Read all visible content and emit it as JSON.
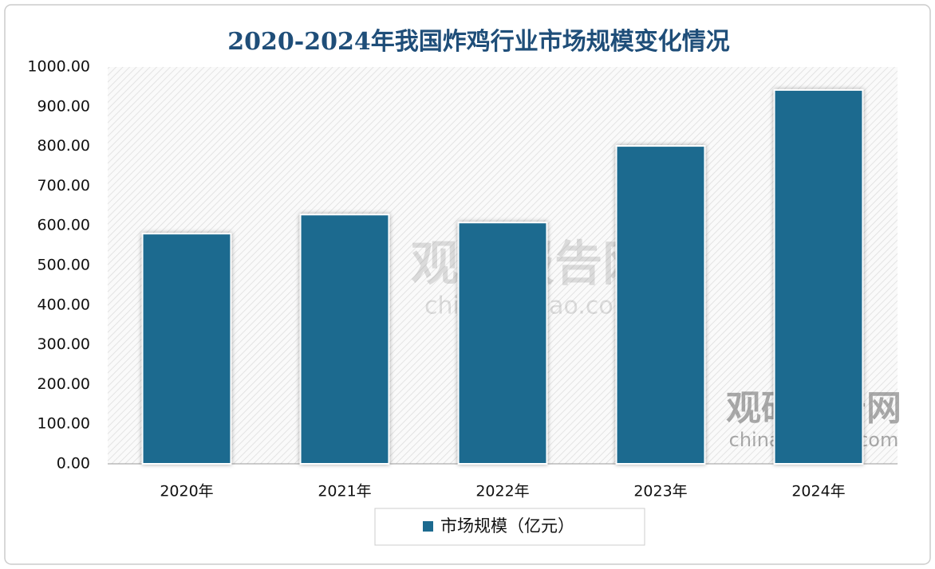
{
  "chart_data": {
    "type": "bar",
    "title": "2020-2024年我国炸鸡行业市场规模变化情况",
    "categories": [
      "2020年",
      "2021年",
      "2022年",
      "2023年",
      "2024年"
    ],
    "series": [
      {
        "name": "市场规模（亿元）",
        "color": "#1c6a8f",
        "values": [
          580,
          628,
          608,
          801,
          942
        ]
      }
    ],
    "ylim": [
      0,
      1000
    ],
    "yticks": [
      {
        "value": 0,
        "label": "0.00"
      },
      {
        "value": 100,
        "label": "100.00"
      },
      {
        "value": 200,
        "label": "200.00"
      },
      {
        "value": 300,
        "label": "300.00"
      },
      {
        "value": 400,
        "label": "400.00"
      },
      {
        "value": 500,
        "label": "500.00"
      },
      {
        "value": 600,
        "label": "600.00"
      },
      {
        "value": 700,
        "label": "700.00"
      },
      {
        "value": 800,
        "label": "800.00"
      },
      {
        "value": 900,
        "label": "900.00"
      },
      {
        "value": 1000,
        "label": "1000.00"
      }
    ],
    "grid": false,
    "legend": "bottom",
    "watermark": {
      "brand": "观研报告网",
      "site": "chinabaogao.com"
    }
  }
}
